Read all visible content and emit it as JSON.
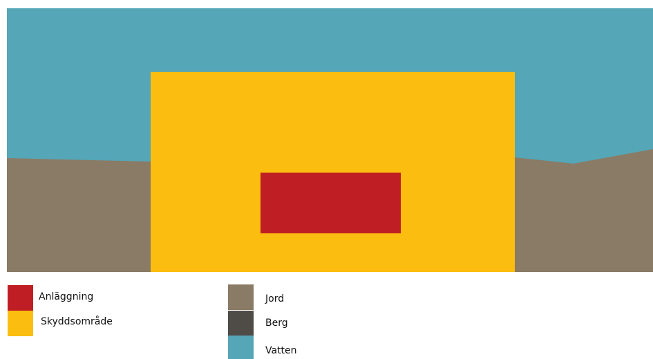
{
  "colors": {
    "anlaggning": "#BE1E24",
    "skyddsomrade": "#FBBE10",
    "jord": "#8A7B66",
    "berg": "#4F4B46",
    "vatten": "#55A6B6"
  },
  "legend": {
    "anlaggning": {
      "label": "Anläggning",
      "color_key": "anlaggning"
    },
    "skyddsomrade": {
      "label": "Skyddsområde",
      "color_key": "skyddsomrade"
    },
    "jord": {
      "label": "Jord",
      "color_key": "jord"
    },
    "berg": {
      "label": "Berg",
      "color_key": "berg"
    },
    "vatten": {
      "label": "Vatten",
      "color_key": "vatten"
    }
  }
}
